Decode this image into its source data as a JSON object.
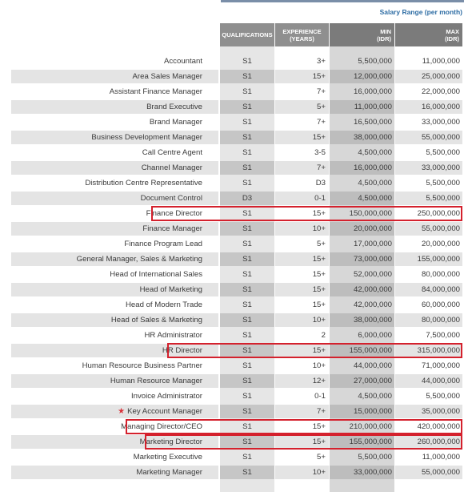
{
  "header": {
    "salary_range": "Salary Range (per month)",
    "qualifications": "QUALIFICATIONS",
    "experience_line1": "EXPERIENCE",
    "experience_line2": "(YEARS)",
    "min_line1": "MIN",
    "min_line2": "(IDR)",
    "max_line1": "MAX",
    "max_line2": "(IDR)"
  },
  "rows": [
    {
      "title": "Accountant",
      "qual": "S1",
      "exp": "3+",
      "min": "5,500,000",
      "max": "11,000,000"
    },
    {
      "title": "Area Sales Manager",
      "qual": "S1",
      "exp": "15+",
      "min": "12,000,000",
      "max": "25,000,000"
    },
    {
      "title": "Assistant Finance Manager",
      "qual": "S1",
      "exp": "7+",
      "min": "16,000,000",
      "max": "22,000,000"
    },
    {
      "title": "Brand Executive",
      "qual": "S1",
      "exp": "5+",
      "min": "11,000,000",
      "max": "16,000,000"
    },
    {
      "title": "Brand Manager",
      "qual": "S1",
      "exp": "7+",
      "min": "16,500,000",
      "max": "33,000,000"
    },
    {
      "title": "Business Development Manager",
      "qual": "S1",
      "exp": "15+",
      "min": "38,000,000",
      "max": "55,000,000"
    },
    {
      "title": "Call Centre Agent",
      "qual": "S1",
      "exp": "3-5",
      "min": "4,500,000",
      "max": "5,500,000"
    },
    {
      "title": "Channel Manager",
      "qual": "S1",
      "exp": "7+",
      "min": "16,000,000",
      "max": "33,000,000"
    },
    {
      "title": "Distribution Centre Representative",
      "qual": "S1",
      "exp": "D3",
      "min": "4,500,000",
      "max": "5,500,000"
    },
    {
      "title": "Document Control",
      "qual": "D3",
      "exp": "0-1",
      "min": "4,500,000",
      "max": "5,500,000"
    },
    {
      "title": "Finance Director",
      "qual": "S1",
      "exp": "15+",
      "min": "150,000,000",
      "max": "250,000,000"
    },
    {
      "title": "Finance Manager",
      "qual": "S1",
      "exp": "10+",
      "min": "20,000,000",
      "max": "55,000,000"
    },
    {
      "title": "Finance Program Lead",
      "qual": "S1",
      "exp": "5+",
      "min": "17,000,000",
      "max": "20,000,000"
    },
    {
      "title": "General Manager, Sales & Marketing",
      "qual": "S1",
      "exp": "15+",
      "min": "73,000,000",
      "max": "155,000,000"
    },
    {
      "title": "Head of International Sales",
      "qual": "S1",
      "exp": "15+",
      "min": "52,000,000",
      "max": "80,000,000"
    },
    {
      "title": "Head of Marketing",
      "qual": "S1",
      "exp": "15+",
      "min": "42,000,000",
      "max": "84,000,000"
    },
    {
      "title": "Head of Modern Trade",
      "qual": "S1",
      "exp": "15+",
      "min": "42,000,000",
      "max": "60,000,000"
    },
    {
      "title": "Head of Sales & Marketing",
      "qual": "S1",
      "exp": "10+",
      "min": "38,000,000",
      "max": "80,000,000"
    },
    {
      "title": "HR Administrator",
      "qual": "S1",
      "exp": "2",
      "min": "6,000,000",
      "max": "7,500,000"
    },
    {
      "title": "HR Director",
      "qual": "S1",
      "exp": "15+",
      "min": "155,000,000",
      "max": "315,000,000"
    },
    {
      "title": "Human Resource Business Partner",
      "qual": "S1",
      "exp": "10+",
      "min": "44,000,000",
      "max": "71,000,000"
    },
    {
      "title": "Human Resource Manager",
      "qual": "S1",
      "exp": "12+",
      "min": "27,000,000",
      "max": "44,000,000"
    },
    {
      "title": "Invoice Administrator",
      "qual": "S1",
      "exp": "0-1",
      "min": "4,500,000",
      "max": "5,500,000"
    },
    {
      "title": "Key Account Manager",
      "qual": "S1",
      "exp": "7+",
      "min": "15,000,000",
      "max": "35,000,000",
      "star": "★"
    },
    {
      "title": "Managing Director/CEO",
      "qual": "S1",
      "exp": "15+",
      "min": "210,000,000",
      "max": "420,000,000"
    },
    {
      "title": "Marketing Director",
      "qual": "S1",
      "exp": "15+",
      "min": "155,000,000",
      "max": "260,000,000"
    },
    {
      "title": "Marketing Executive",
      "qual": "S1",
      "exp": "5+",
      "min": "5,500,000",
      "max": "11,000,000"
    },
    {
      "title": "Marketing Manager",
      "qual": "S1",
      "exp": "10+",
      "min": "33,000,000",
      "max": "55,000,000"
    }
  ],
  "highlights": [
    "Finance Director",
    "HR Director",
    "Managing Director/CEO",
    "Marketing Director"
  ],
  "colors": {
    "highlight": "#d4212d",
    "salary_heading": "#2e6da4",
    "star": "#d9323a"
  }
}
